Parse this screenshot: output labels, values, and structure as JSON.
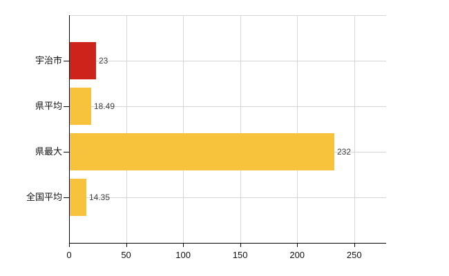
{
  "chart_data": {
    "type": "bar",
    "orientation": "horizontal",
    "title": "",
    "xlabel": "",
    "ylabel": "",
    "categories": [
      "宇治市",
      "県平均",
      "県最大",
      "全国平均"
    ],
    "values": [
      23,
      18.49,
      232,
      14.35
    ],
    "value_labels": [
      "23",
      "18.49",
      "232",
      "14.35"
    ],
    "bar_colors": [
      "#cc241a",
      "#f7c33d",
      "#f7c33d",
      "#f7c33d"
    ],
    "x_ticks": [
      0,
      50,
      100,
      150,
      200,
      250
    ],
    "x_tick_labels": [
      "0",
      "50",
      "100",
      "150",
      "200",
      "250"
    ],
    "xlim": [
      0,
      278
    ],
    "grid": true,
    "legend": false,
    "highlight_category": "宇治市"
  },
  "colors": {
    "bar_highlight": "#cc241a",
    "bar_default": "#f7c33d",
    "gridline": "#d6d6d6",
    "axis": "#000000",
    "value_label": "#3d3d3d",
    "tick_label": "#111111",
    "background": "#ffffff"
  }
}
